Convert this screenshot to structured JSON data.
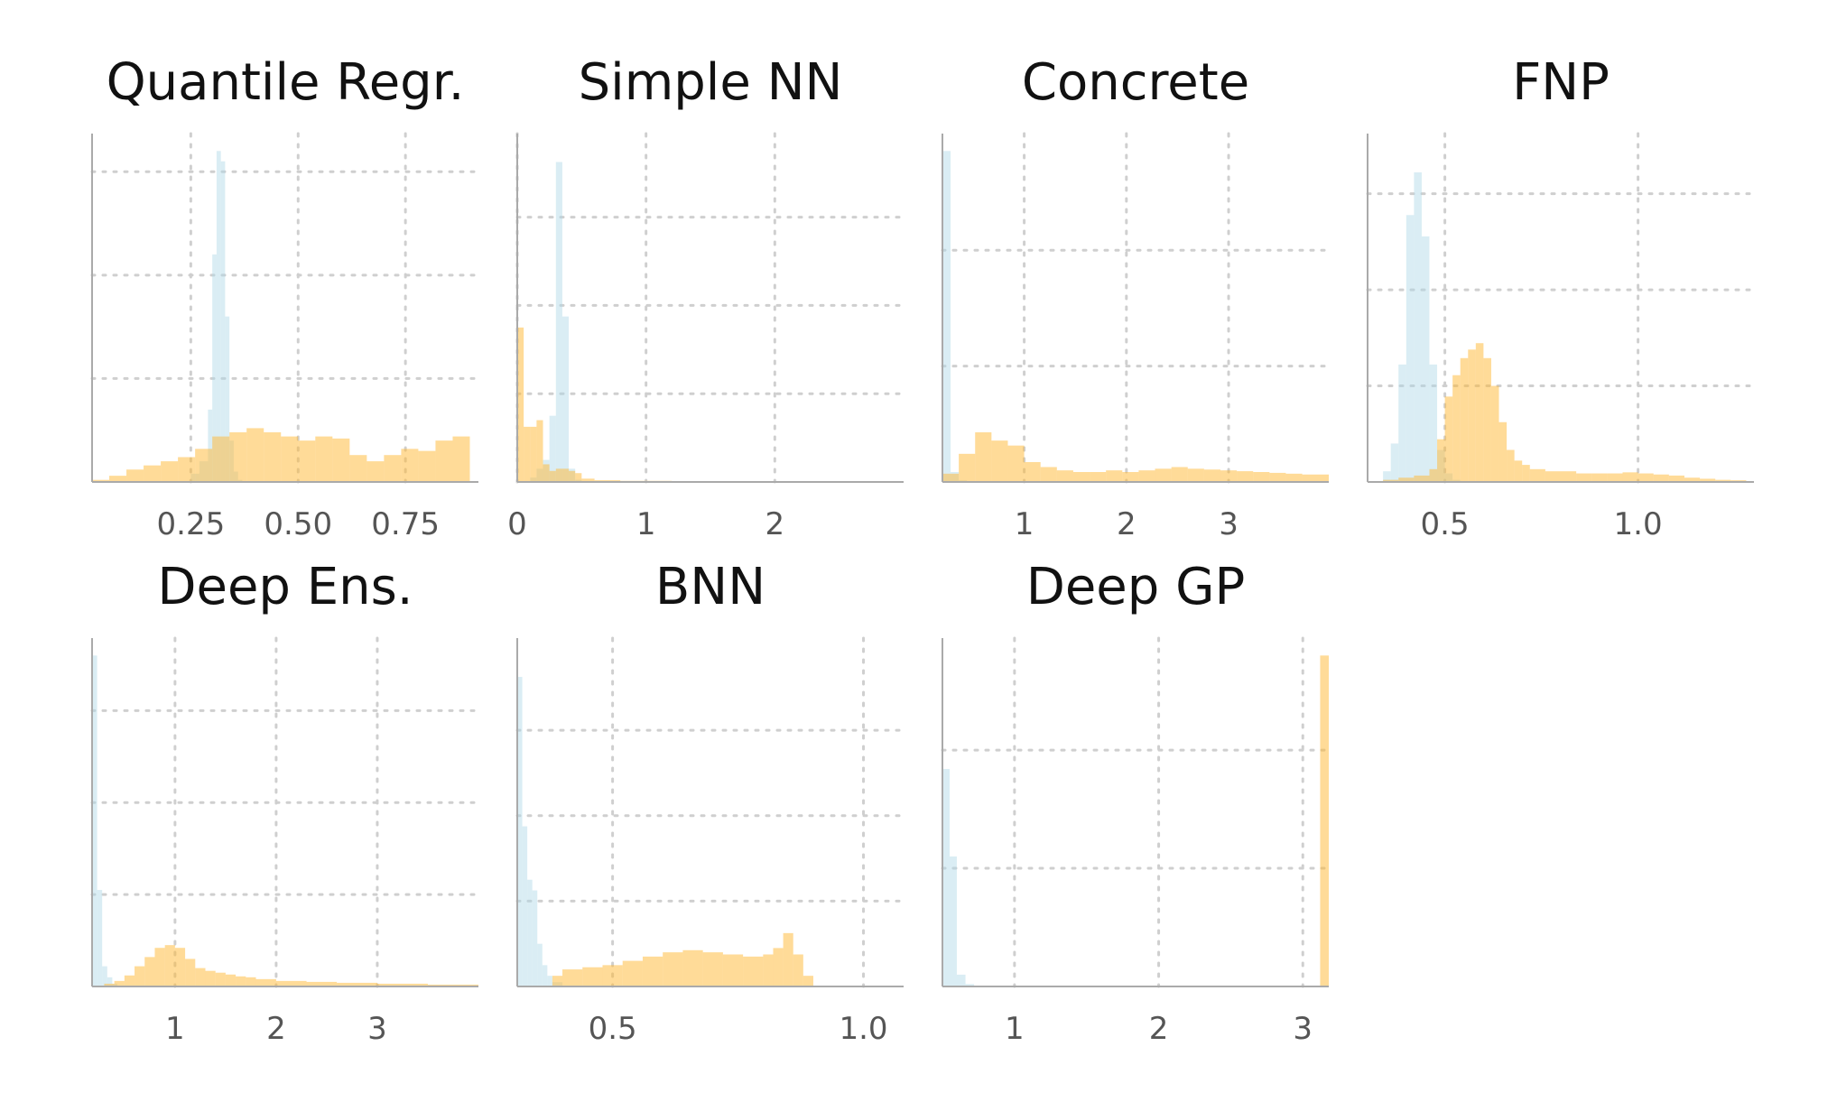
{
  "figure": {
    "colors": {
      "series_a": "#add8e6",
      "series_b": "#ffb732"
    }
  },
  "chart_data": [
    {
      "type": "histogram",
      "title": "Quantile Regr.",
      "xlim": [
        0.02,
        0.92
      ],
      "ylim": [
        0,
        1.6
      ],
      "xticks": [
        0.25,
        0.5,
        0.75
      ],
      "xtick_labels": [
        "0.25",
        "0.50",
        "0.75"
      ],
      "yticks": [
        0.5,
        1.0,
        1.5
      ],
      "series": [
        {
          "color": "#add8e6",
          "bins": [
            0.23,
            0.25,
            0.27,
            0.29,
            0.3,
            0.31,
            0.32,
            0.33,
            0.34,
            0.35,
            0.36,
            0.37,
            0.38
          ],
          "values": [
            0,
            0.04,
            0.1,
            0.35,
            1.1,
            1.6,
            1.55,
            0.8,
            0.2,
            0.05,
            0.01,
            0
          ]
        },
        {
          "color": "#ffb732",
          "bins": [
            0.02,
            0.06,
            0.1,
            0.14,
            0.18,
            0.22,
            0.26,
            0.3,
            0.34,
            0.38,
            0.42,
            0.46,
            0.5,
            0.54,
            0.58,
            0.62,
            0.66,
            0.7,
            0.74,
            0.78,
            0.82,
            0.86,
            0.9
          ],
          "values": [
            0.01,
            0.03,
            0.06,
            0.08,
            0.1,
            0.12,
            0.16,
            0.22,
            0.24,
            0.26,
            0.24,
            0.22,
            0.2,
            0.22,
            0.21,
            0.13,
            0.1,
            0.13,
            0.16,
            0.15,
            0.2,
            0.22
          ]
        }
      ]
    },
    {
      "type": "histogram",
      "title": "Simple NN",
      "xlim": [
        0,
        3.0
      ],
      "ylim": [
        0,
        1.5
      ],
      "xticks": [
        0,
        1,
        2
      ],
      "xtick_labels": [
        "0",
        "1",
        "2"
      ],
      "yticks": [
        0.4,
        0.8,
        1.2
      ],
      "series": [
        {
          "color": "#add8e6",
          "bins": [
            0.1,
            0.15,
            0.2,
            0.25,
            0.3,
            0.35,
            0.4,
            0.45,
            0.5
          ],
          "values": [
            0.02,
            0.06,
            0.1,
            0.3,
            1.45,
            0.75,
            0.06,
            0.01
          ]
        },
        {
          "color": "#ffb732",
          "bins": [
            0.0,
            0.05,
            0.1,
            0.15,
            0.2,
            0.25,
            0.3,
            0.35,
            0.4,
            0.45,
            0.5,
            0.6,
            0.8,
            1.2,
            2.0,
            3.0
          ],
          "values": [
            0.7,
            0.25,
            0.25,
            0.28,
            0.08,
            0.05,
            0.06,
            0.06,
            0.05,
            0.04,
            0.015,
            0.008,
            0.005,
            0.003,
            0.002
          ]
        }
      ]
    },
    {
      "type": "histogram",
      "title": "Concrete",
      "xlim": [
        0.2,
        3.98
      ],
      "ylim": [
        0,
        2.0
      ],
      "xticks": [
        1,
        2,
        3
      ],
      "xtick_labels": [
        "1",
        "2",
        "3"
      ],
      "yticks": [
        0.7,
        1.4
      ],
      "series": [
        {
          "color": "#add8e6",
          "bins": [
            0.2,
            0.28,
            0.36,
            0.44
          ],
          "values": [
            2.0,
            0.06,
            0.01
          ]
        },
        {
          "color": "#ffb732",
          "bins": [
            0.2,
            0.36,
            0.52,
            0.68,
            0.84,
            1.0,
            1.16,
            1.32,
            1.48,
            1.64,
            1.8,
            1.96,
            2.12,
            2.28,
            2.44,
            2.6,
            2.76,
            2.92,
            3.08,
            3.24,
            3.4,
            3.56,
            3.72,
            3.98
          ],
          "values": [
            0.05,
            0.17,
            0.3,
            0.25,
            0.22,
            0.12,
            0.09,
            0.07,
            0.06,
            0.06,
            0.07,
            0.06,
            0.07,
            0.08,
            0.09,
            0.08,
            0.075,
            0.07,
            0.065,
            0.06,
            0.055,
            0.05,
            0.045
          ]
        }
      ]
    },
    {
      "type": "histogram",
      "title": "FNP",
      "xlim": [
        0.3,
        1.3
      ],
      "ylim": [
        0,
        1.55
      ],
      "xticks": [
        0.5,
        1.0
      ],
      "xtick_labels": [
        "0.5",
        "1.0"
      ],
      "yticks": [
        0.45,
        0.9,
        1.35
      ],
      "series": [
        {
          "color": "#add8e6",
          "bins": [
            0.34,
            0.36,
            0.38,
            0.4,
            0.42,
            0.44,
            0.46,
            0.48,
            0.5,
            0.52,
            0.54
          ],
          "values": [
            0.05,
            0.18,
            0.55,
            1.25,
            1.45,
            1.15,
            0.55,
            0.15,
            0.04,
            0.01
          ]
        },
        {
          "color": "#ffb732",
          "bins": [
            0.34,
            0.38,
            0.42,
            0.46,
            0.48,
            0.5,
            0.52,
            0.54,
            0.56,
            0.58,
            0.6,
            0.62,
            0.64,
            0.66,
            0.68,
            0.7,
            0.72,
            0.76,
            0.8,
            0.84,
            0.88,
            0.92,
            0.96,
            1.0,
            1.04,
            1.08,
            1.12,
            1.16,
            1.2,
            1.24,
            1.28
          ],
          "values": [
            0.01,
            0.02,
            0.03,
            0.06,
            0.2,
            0.4,
            0.5,
            0.58,
            0.62,
            0.65,
            0.58,
            0.45,
            0.28,
            0.15,
            0.1,
            0.08,
            0.06,
            0.05,
            0.05,
            0.04,
            0.04,
            0.04,
            0.045,
            0.04,
            0.035,
            0.03,
            0.02,
            0.015,
            0.01,
            0.008
          ]
        }
      ]
    },
    {
      "type": "histogram",
      "title": "Deep Ens.",
      "xlim": [
        0.18,
        4.0
      ],
      "ylim": [
        0,
        3.6
      ],
      "xticks": [
        1,
        2,
        3
      ],
      "xtick_labels": [
        "1",
        "2",
        "3"
      ],
      "yticks": [
        1.0,
        2.0,
        3.0
      ],
      "series": [
        {
          "color": "#add8e6",
          "bins": [
            0.18,
            0.23,
            0.28,
            0.33,
            0.38,
            0.43
          ],
          "values": [
            3.6,
            1.05,
            0.22,
            0.1,
            0.03
          ]
        },
        {
          "color": "#ffb732",
          "bins": [
            0.2,
            0.3,
            0.4,
            0.5,
            0.6,
            0.7,
            0.8,
            0.9,
            1.0,
            1.1,
            1.2,
            1.3,
            1.4,
            1.5,
            1.6,
            1.7,
            1.8,
            2.0,
            2.3,
            2.6,
            3.0,
            3.5,
            4.0
          ],
          "values": [
            0.01,
            0.03,
            0.06,
            0.12,
            0.22,
            0.32,
            0.42,
            0.45,
            0.42,
            0.3,
            0.2,
            0.17,
            0.15,
            0.13,
            0.11,
            0.1,
            0.08,
            0.06,
            0.05,
            0.04,
            0.03,
            0.02
          ]
        }
      ]
    },
    {
      "type": "histogram",
      "title": "BNN",
      "xlim": [
        0.31,
        1.08
      ],
      "ylim": [
        0,
        1.55
      ],
      "xticks": [
        0.5,
        1.0
      ],
      "xtick_labels": [
        "0.5",
        "1.0"
      ],
      "yticks": [
        0.4,
        0.8,
        1.2
      ],
      "series": [
        {
          "color": "#add8e6",
          "bins": [
            0.31,
            0.32,
            0.33,
            0.34,
            0.35,
            0.36,
            0.37,
            0.38,
            0.4
          ],
          "values": [
            1.45,
            0.75,
            0.5,
            0.45,
            0.2,
            0.1,
            0.05,
            0.02
          ]
        },
        {
          "color": "#ffb732",
          "bins": [
            0.38,
            0.4,
            0.44,
            0.48,
            0.52,
            0.56,
            0.6,
            0.64,
            0.68,
            0.72,
            0.76,
            0.8,
            0.82,
            0.84,
            0.86,
            0.88,
            0.9
          ],
          "values": [
            0.05,
            0.08,
            0.09,
            0.1,
            0.12,
            0.14,
            0.16,
            0.17,
            0.16,
            0.15,
            0.14,
            0.15,
            0.18,
            0.25,
            0.15,
            0.05
          ]
        }
      ]
    },
    {
      "type": "histogram",
      "title": "Deep GP",
      "xlim": [
        0.5,
        3.18
      ],
      "ylim": [
        0,
        1.4
      ],
      "xticks": [
        1,
        2,
        3
      ],
      "xtick_labels": [
        "1",
        "2",
        "3"
      ],
      "yticks": [
        0.5,
        1.0
      ],
      "series": [
        {
          "color": "#add8e6",
          "bins": [
            0.5,
            0.55,
            0.6,
            0.66,
            0.72
          ],
          "values": [
            0.92,
            0.55,
            0.05,
            0.01
          ]
        },
        {
          "color": "#ffb732",
          "bins": [
            3.12,
            3.18
          ],
          "values": [
            1.4
          ]
        }
      ]
    }
  ]
}
